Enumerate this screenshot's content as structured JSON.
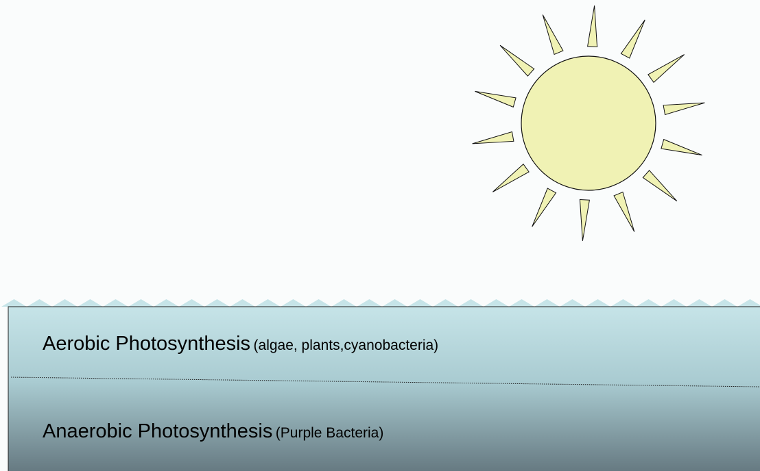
{
  "layers": [
    {
      "label": "Aerobic Photosynthesis",
      "note": "(algae, plants,cyanobacteria)"
    },
    {
      "label": "Anaerobic Photosynthesis",
      "note": "(Purple Bacteria)"
    }
  ]
}
